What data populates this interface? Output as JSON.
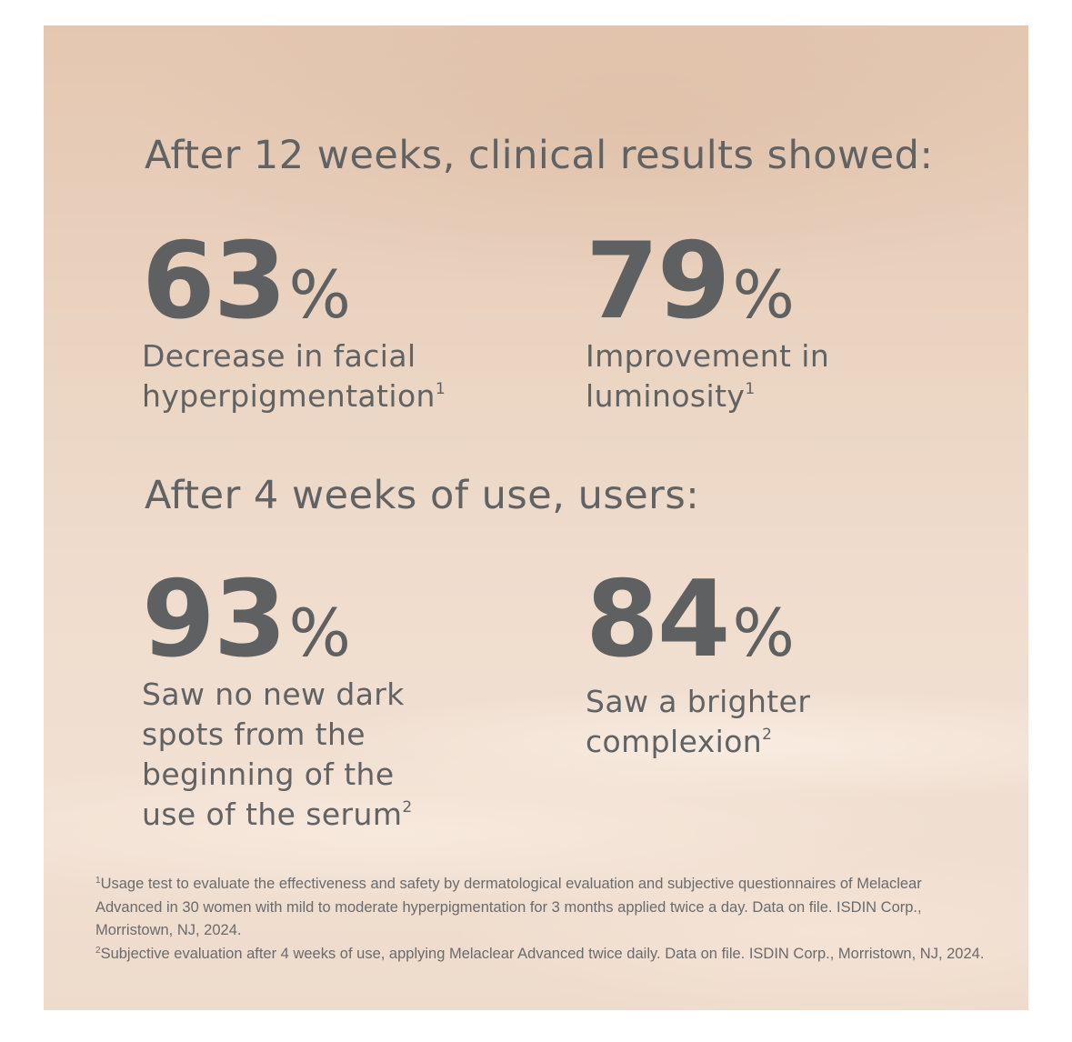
{
  "headings": {
    "clinical": "After 12 weeks, clinical results showed:",
    "users": "After 4 weeks of use, users:"
  },
  "stats": [
    {
      "value": "63",
      "unit": "%",
      "line1": "Decrease in facial",
      "line2": "hyperpigmentation",
      "ref": "1"
    },
    {
      "value": "79",
      "unit": "%",
      "line1": "Improvement in",
      "line2": "luminosity",
      "ref": "1"
    },
    {
      "value": "93",
      "unit": "%",
      "line1": "Saw no new dark",
      "line2": "spots from the",
      "line3": "beginning of the",
      "line4": "use of the serum",
      "ref": "2"
    },
    {
      "value": "84",
      "unit": "%",
      "line1": "Saw a brighter",
      "line2": "complexion",
      "ref": "2"
    }
  ],
  "footnotes": [
    {
      "ref": "1",
      "text": "Usage test to evaluate the effectiveness and safety by dermatological evaluation and subjective questionnaires of Melaclear Advanced in 30 women with mild to moderate hyperpigmentation for 3 months applied twice a day. Data on file. ISDIN Corp., Morristown, NJ, 2024."
    },
    {
      "ref": "2",
      "text": "Subjective evaluation after 4 weeks of use, applying Melaclear Advanced twice daily. Data on file. ISDIN Corp., Morristown, NJ, 2024."
    }
  ],
  "colors": {
    "text": "#5f6062",
    "background_top": "#e4c7b1",
    "background_bottom": "#f1e0d2"
  }
}
